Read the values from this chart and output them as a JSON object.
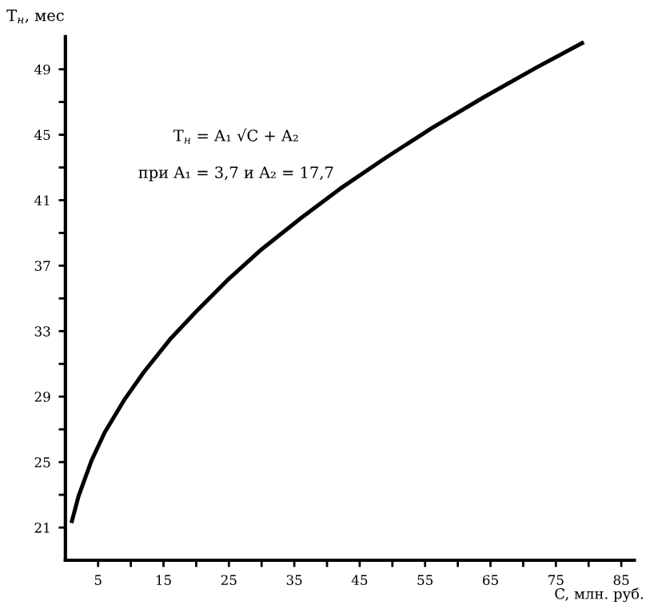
{
  "chart_data": {
    "type": "line",
    "xlabel": "C, млн. руб.",
    "ylabel": "T$_{н}$, мес",
    "annotations": [
      "T$_{н}$ = A₁ √C + A₂",
      "при A₁ = 3,7 и A₂ = 17,7"
    ],
    "x": [
      1,
      2,
      4,
      6,
      9,
      12,
      16,
      20,
      25,
      30,
      36,
      42,
      49,
      56,
      64,
      72,
      79
    ],
    "values": [
      21.4,
      22.9,
      25.1,
      26.8,
      28.8,
      30.5,
      32.5,
      34.2,
      36.2,
      38.0,
      39.9,
      41.7,
      43.6,
      45.4,
      47.3,
      49.1,
      50.6
    ],
    "color": "#000000",
    "marker": "none",
    "line_style": "solid",
    "grid": false,
    "legend": false,
    "xlim": [
      0,
      87
    ],
    "ylim": [
      19,
      51
    ],
    "xticks": [
      5,
      {
        "value": 10,
        "label": null
      },
      15,
      {
        "value": 20,
        "label": null
      },
      25,
      {
        "value": 30,
        "label": null
      },
      35,
      {
        "value": 40,
        "label": null
      },
      45,
      {
        "value": 50,
        "label": null
      },
      55,
      {
        "value": 60,
        "label": null
      },
      65,
      {
        "value": 70,
        "label": null
      },
      75,
      {
        "value": 80,
        "label": null
      },
      85
    ],
    "yticks": [
      21,
      {
        "value": 23,
        "label": null
      },
      25,
      {
        "value": 27,
        "label": null
      },
      29,
      {
        "value": 31,
        "label": null
      },
      33,
      {
        "value": 35,
        "label": null
      },
      37,
      {
        "value": 39,
        "label": null
      },
      41,
      {
        "value": 43,
        "label": null
      },
      45,
      {
        "value": 47,
        "label": null
      },
      49
    ]
  }
}
